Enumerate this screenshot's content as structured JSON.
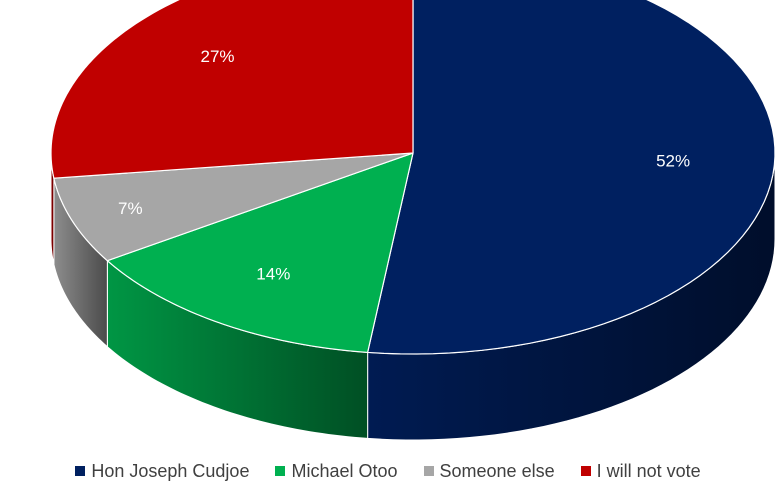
{
  "chart_data": {
    "type": "pie",
    "style": "3d",
    "legend_position": "bottom",
    "slices": [
      {
        "label": "Hon Joseph Cudjoe",
        "value": 52,
        "display": "52%",
        "color": "#002060"
      },
      {
        "label": "Michael Otoo",
        "value": 14,
        "display": "14%",
        "color": "#00B050"
      },
      {
        "label": "Someone else",
        "value": 7,
        "display": "7%",
        "color": "#A6A6A6"
      },
      {
        "label": "I will not vote",
        "value": 27,
        "display": "27%",
        "color": "#C00000"
      }
    ]
  }
}
